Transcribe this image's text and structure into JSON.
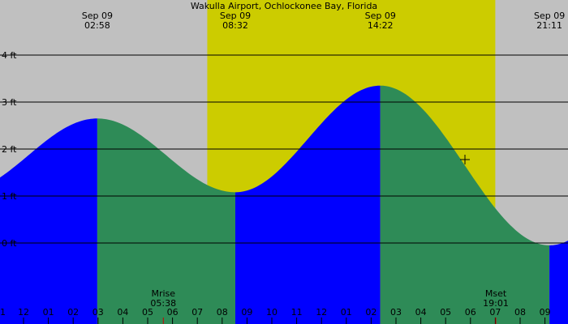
{
  "chart_data": {
    "type": "area",
    "title": "Wakulla Airport, Ochlockonee Bay, Florida",
    "y_unit": "ft",
    "y_ticks": [
      {
        "value": 0,
        "label": "0 ft"
      },
      {
        "value": 1,
        "label": "1 ft"
      },
      {
        "value": 2,
        "label": "2 ft"
      },
      {
        "value": 3,
        "label": "3 ft"
      },
      {
        "value": 4,
        "label": "4 ft"
      }
    ],
    "x_tick_labels": [
      "1",
      "12",
      "01",
      "02",
      "03",
      "04",
      "05",
      "06",
      "07",
      "08",
      "09",
      "10",
      "11",
      "12",
      "01",
      "02",
      "03",
      "04",
      "05",
      "06",
      "07",
      "08",
      "09"
    ],
    "daylight": {
      "start_hour": 7.4,
      "end_hour": 19.0
    },
    "tide_events": [
      {
        "date": "Sep 09",
        "time": "02:58",
        "hour": 2.97,
        "height": 2.65,
        "kind": "high"
      },
      {
        "date": "Sep 09",
        "time": "08:32",
        "hour": 8.53,
        "height": 1.08,
        "kind": "low"
      },
      {
        "date": "Sep 09",
        "time": "14:22",
        "hour": 14.37,
        "height": 3.35,
        "kind": "high"
      },
      {
        "date": "Sep 09",
        "time": "21:11",
        "hour": 21.18,
        "height": -0.05,
        "kind": "low"
      }
    ],
    "moon": {
      "rise": {
        "label": "Mrise",
        "time": "05:38",
        "hour": 5.63
      },
      "set": {
        "label": "Mset",
        "time": "19:01",
        "hour": 19.02
      }
    },
    "colors": {
      "background": "#c0c0c0",
      "daylight": "#cccc00",
      "rising": "#0000ff",
      "falling": "#2e8b57",
      "moon_tick": "#cc0000"
    }
  }
}
